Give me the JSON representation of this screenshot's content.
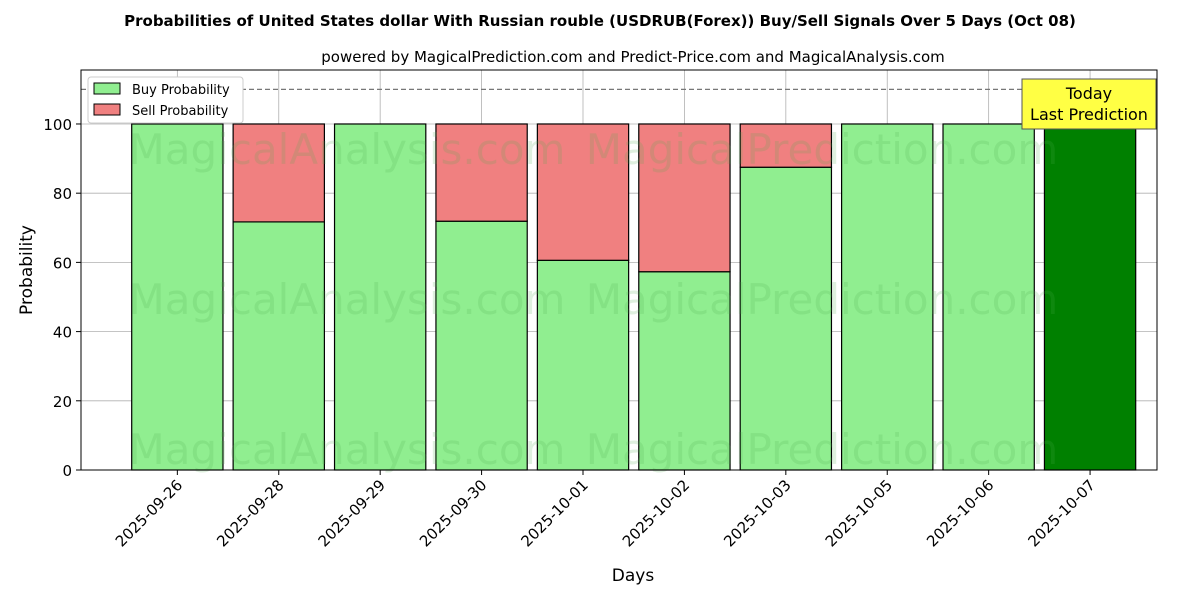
{
  "chart_data": {
    "type": "bar",
    "stacked": true,
    "title": "Probabilities of United States dollar With Russian rouble (USDRUB(Forex)) Buy/Sell Signals Over 5 Days (Oct 08)",
    "subtitle": "powered by MagicalPrediction.com and Predict-Price.com and MagicalAnalysis.com",
    "xlabel": "Days",
    "ylabel": "Probability",
    "ylim": [
      0,
      115.6
    ],
    "yticks": [
      0,
      20,
      40,
      60,
      80,
      100
    ],
    "grid": true,
    "categories": [
      "2025-09-26",
      "2025-09-28",
      "2025-09-29",
      "2025-09-30",
      "2025-10-01",
      "2025-10-02",
      "2025-10-03",
      "2025-10-05",
      "2025-10-06",
      "2025-10-07"
    ],
    "series": [
      {
        "name": "Buy Probability",
        "color": "#90ee90",
        "values": [
          100,
          71.7,
          100,
          71.9,
          60.6,
          57.3,
          87.5,
          100,
          100,
          100
        ]
      },
      {
        "name": "Sell Probability",
        "color": "#f08080",
        "values": [
          0,
          28.3,
          0,
          28.1,
          39.4,
          42.7,
          12.5,
          0,
          0,
          0
        ]
      }
    ],
    "highlight": {
      "index": 9,
      "color": "#008000"
    },
    "reference_line": {
      "y": 110,
      "style": "dashed"
    },
    "legend": "top-left",
    "annotation": {
      "lines": [
        "Today",
        "Last Prediction"
      ],
      "color": "#ffff44"
    },
    "watermarks": [
      "MagicalAnalysis.com",
      "MagicalPrediction.com"
    ]
  }
}
